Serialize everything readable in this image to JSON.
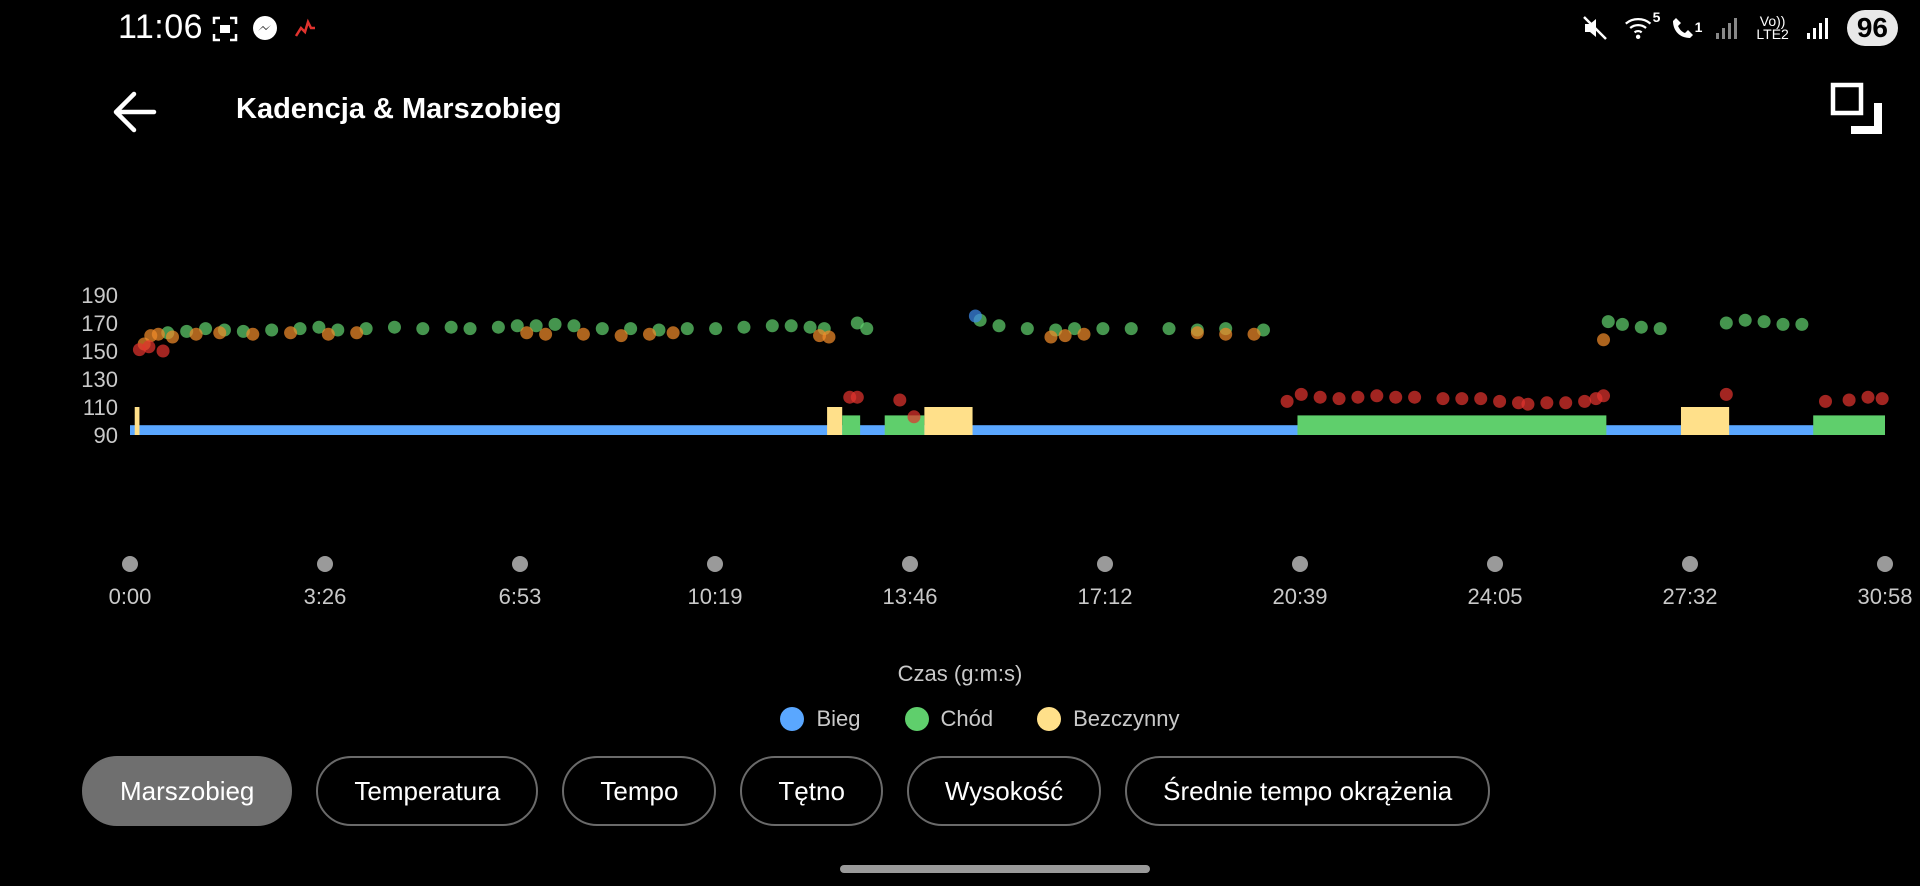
{
  "status_bar": {
    "time": "11:06",
    "battery": "96",
    "left_icons": [
      "screenshot-icon",
      "messenger-icon",
      "activity-icon"
    ],
    "right_icons": [
      "mute-icon",
      "wifi-icon",
      "wifi-call-icon",
      "signal-icon",
      "volte-icon",
      "signal-icon-2"
    ],
    "wifi_badge": "5",
    "call_badge": "1",
    "volte_top": "Vo))",
    "volte_bottom": "LTE2"
  },
  "header": {
    "title": "Kadencja & Marszobieg",
    "back_icon": "arrow-left-icon",
    "expand_icon": "expand-icon"
  },
  "chart_data": {
    "type": "scatter",
    "xlabel": "Czas (g:m:s)",
    "ylim": [
      90,
      190
    ],
    "y_ticks": [
      "190",
      "170",
      "150",
      "130",
      "110",
      "90"
    ],
    "x_ticks": [
      "0:00",
      "3:26",
      "6:53",
      "10:19",
      "13:46",
      "17:12",
      "20:39",
      "24:05",
      "27:32",
      "30:58"
    ],
    "x_range_seconds": [
      0,
      1858
    ],
    "legend": [
      {
        "name": "Bieg",
        "color": "#5aa7ff"
      },
      {
        "name": "Chód",
        "color": "#5fcf6c"
      },
      {
        "name": "Bezczynny",
        "color": "#ffe08a"
      }
    ],
    "activity_bar": {
      "base_color": "#5aa7ff",
      "run_value": 97,
      "walk_value": 104,
      "idle_value": 110,
      "segments": [
        {
          "type": "Bezczynny",
          "start": 5,
          "end": 10
        },
        {
          "type": "Bezczynny",
          "start": 738,
          "end": 754
        },
        {
          "type": "Chód",
          "start": 754,
          "end": 773
        },
        {
          "type": "Chód",
          "start": 799,
          "end": 841
        },
        {
          "type": "Bezczynny",
          "start": 841,
          "end": 892
        },
        {
          "type": "Chód",
          "start": 1236,
          "end": 1563
        },
        {
          "type": "Bezczynny",
          "start": 1642,
          "end": 1693
        },
        {
          "type": "Chód",
          "start": 1782,
          "end": 1858
        }
      ]
    },
    "cadence_series": [
      {
        "color": "#5fcf6c",
        "points": [
          [
            40,
            163
          ],
          [
            60,
            164
          ],
          [
            80,
            166
          ],
          [
            100,
            165
          ],
          [
            120,
            164
          ],
          [
            150,
            165
          ],
          [
            180,
            166
          ],
          [
            200,
            167
          ],
          [
            220,
            165
          ],
          [
            250,
            166
          ],
          [
            280,
            167
          ],
          [
            310,
            166
          ],
          [
            340,
            167
          ],
          [
            360,
            166
          ],
          [
            390,
            167
          ],
          [
            410,
            168
          ],
          [
            430,
            168
          ],
          [
            450,
            169
          ],
          [
            470,
            168
          ],
          [
            500,
            166
          ],
          [
            530,
            166
          ],
          [
            560,
            165
          ],
          [
            590,
            166
          ],
          [
            620,
            166
          ],
          [
            650,
            167
          ],
          [
            680,
            168
          ],
          [
            700,
            168
          ],
          [
            720,
            167
          ],
          [
            735,
            166
          ],
          [
            770,
            170
          ],
          [
            780,
            166
          ],
          [
            900,
            172
          ],
          [
            920,
            168
          ],
          [
            950,
            166
          ],
          [
            980,
            165
          ],
          [
            1000,
            166
          ],
          [
            1030,
            166
          ],
          [
            1060,
            166
          ],
          [
            1100,
            166
          ],
          [
            1130,
            165
          ],
          [
            1160,
            166
          ],
          [
            1200,
            165
          ],
          [
            1565,
            171
          ],
          [
            1580,
            169
          ],
          [
            1600,
            167
          ],
          [
            1620,
            166
          ],
          [
            1690,
            170
          ],
          [
            1710,
            172
          ],
          [
            1730,
            171
          ],
          [
            1750,
            169
          ],
          [
            1770,
            169
          ]
        ]
      },
      {
        "color": "#f08a2a",
        "points": [
          [
            15,
            155
          ],
          [
            22,
            161
          ],
          [
            30,
            162
          ],
          [
            45,
            160
          ],
          [
            70,
            162
          ],
          [
            95,
            163
          ],
          [
            130,
            162
          ],
          [
            170,
            163
          ],
          [
            210,
            162
          ],
          [
            240,
            163
          ],
          [
            420,
            163
          ],
          [
            440,
            162
          ],
          [
            480,
            162
          ],
          [
            520,
            161
          ],
          [
            550,
            162
          ],
          [
            575,
            163
          ],
          [
            730,
            161
          ],
          [
            740,
            160
          ],
          [
            975,
            160
          ],
          [
            990,
            161
          ],
          [
            1010,
            162
          ],
          [
            1130,
            163
          ],
          [
            1160,
            162
          ],
          [
            1190,
            162
          ],
          [
            1560,
            158
          ]
        ]
      },
      {
        "color": "#e0332e",
        "points": [
          [
            10,
            151
          ],
          [
            20,
            153
          ],
          [
            35,
            150
          ],
          [
            762,
            117
          ],
          [
            770,
            117
          ],
          [
            815,
            115
          ],
          [
            830,
            103
          ],
          [
            1225,
            114
          ],
          [
            1240,
            119
          ],
          [
            1260,
            117
          ],
          [
            1280,
            116
          ],
          [
            1300,
            117
          ],
          [
            1320,
            118
          ],
          [
            1340,
            117
          ],
          [
            1360,
            117
          ],
          [
            1390,
            116
          ],
          [
            1410,
            116
          ],
          [
            1430,
            116
          ],
          [
            1450,
            114
          ],
          [
            1470,
            113
          ],
          [
            1480,
            112
          ],
          [
            1500,
            113
          ],
          [
            1520,
            113
          ],
          [
            1540,
            114
          ],
          [
            1552,
            116
          ],
          [
            1560,
            118
          ],
          [
            1690,
            119
          ],
          [
            1795,
            114
          ],
          [
            1820,
            115
          ],
          [
            1840,
            117
          ],
          [
            1855,
            116
          ]
        ]
      },
      {
        "color": "#3d8bea",
        "points": [
          [
            895,
            175
          ]
        ]
      }
    ]
  },
  "tabs": [
    {
      "label": "Marszobieg",
      "active": true
    },
    {
      "label": "Temperatura",
      "active": false
    },
    {
      "label": "Tempo",
      "active": false
    },
    {
      "label": "Tętno",
      "active": false
    },
    {
      "label": "Wysokość",
      "active": false
    },
    {
      "label": "Średnie tempo okrążenia",
      "active": false
    }
  ]
}
